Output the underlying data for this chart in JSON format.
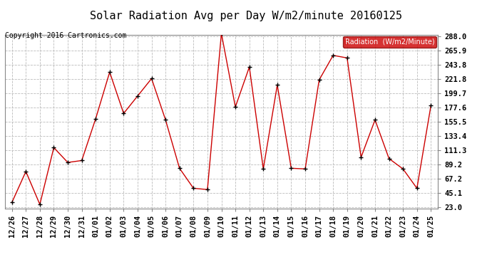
{
  "title": "Solar Radiation Avg per Day W/m2/minute 20160125",
  "copyright": "Copyright 2016 Cartronics.com",
  "legend_label": "Radiation  (W/m2/Minute)",
  "x_labels": [
    "12/26",
    "12/27",
    "12/28",
    "12/29",
    "12/30",
    "12/31",
    "01/01",
    "01/02",
    "01/03",
    "01/04",
    "01/05",
    "01/06",
    "01/07",
    "01/08",
    "01/09",
    "01/10",
    "01/11",
    "01/12",
    "01/13",
    "01/14",
    "01/15",
    "01/16",
    "01/17",
    "01/18",
    "01/19",
    "01/20",
    "01/21",
    "01/22",
    "01/23",
    "01/24",
    "01/25"
  ],
  "y_values": [
    30.0,
    78.0,
    27.0,
    115.0,
    92.0,
    95.0,
    160.0,
    232.0,
    168.0,
    195.0,
    222.0,
    158.0,
    83.0,
    52.0,
    50.0,
    292.0,
    178.0,
    240.0,
    82.0,
    212.0,
    83.0,
    82.0,
    220.0,
    258.0,
    254.0,
    100.0,
    158.0,
    98.0,
    82.0,
    52.0,
    180.0
  ],
  "y_ticks": [
    23.0,
    45.1,
    67.2,
    89.2,
    111.3,
    133.4,
    155.5,
    177.6,
    199.7,
    221.8,
    243.8,
    265.9,
    288.0
  ],
  "line_color": "#cc0000",
  "marker_color": "#000000",
  "background_color": "#ffffff",
  "grid_color": "#bbbbbb",
  "legend_bg": "#cc0000",
  "legend_text_color": "#ffffff",
  "title_fontsize": 11,
  "copyright_fontsize": 7,
  "tick_fontsize": 7.5
}
